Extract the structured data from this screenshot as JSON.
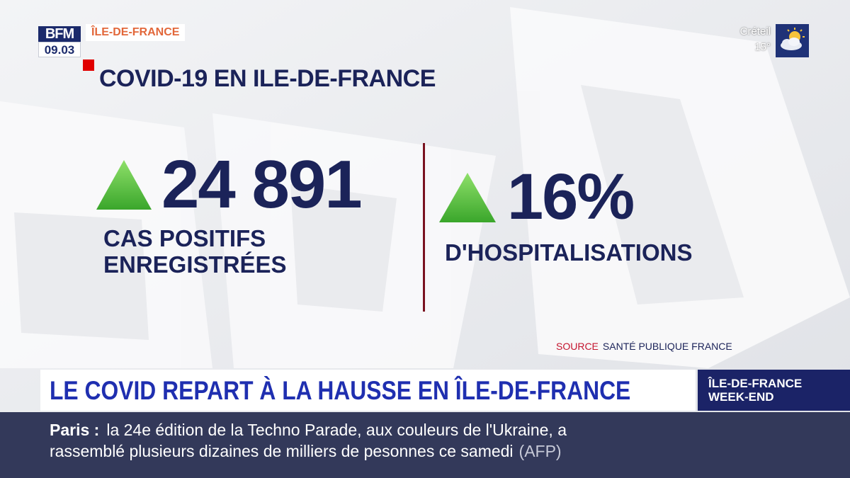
{
  "channel": {
    "logo": "BFM",
    "time": "09.03",
    "region": "ÎLE-DE-FRANCE"
  },
  "weather": {
    "city": "Créteil",
    "temp": "15°",
    "icon": "sun-cloud-icon"
  },
  "graphic": {
    "title": "COVID-19 EN ILE-DE-FRANCE",
    "stat1": {
      "value": "24 891",
      "label_line1": "CAS POSITIFS",
      "label_line2": "ENREGISTRÉES",
      "trend": "up"
    },
    "stat2": {
      "value": "16%",
      "label": "D'HOSPITALISATIONS",
      "trend": "up"
    },
    "source_label": "SOURCE",
    "source_value": "SANTÉ PUBLIQUE FRANCE"
  },
  "headline": "LE COVID REPART À LA HAUSSE EN ÎLE-DE-FRANCE",
  "show": {
    "line1": "ÎLE-DE-FRANCE",
    "line2": "WEEK-END"
  },
  "ticker": {
    "place": "Paris :",
    "text_line1": "la 24e édition de la Techno Parade, aux couleurs de l'Ukraine, a",
    "text_line2": "rassemblé plusieurs dizaines de milliers de pesonnes ce samedi",
    "source": "(AFP)"
  },
  "colors": {
    "navy": "#1b2359",
    "headline_blue": "#1f2fb0",
    "trend_green": "#5cc63c",
    "accent_red": "#c4152f"
  }
}
